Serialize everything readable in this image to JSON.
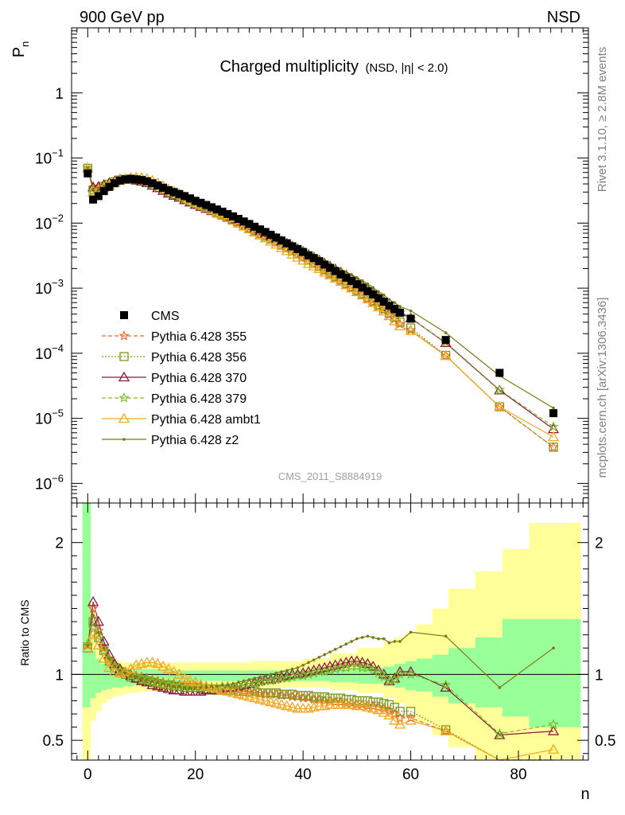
{
  "header": {
    "left": "900 GeV pp",
    "right": "NSD",
    "title_main": "Charged multiplicity",
    "title_sub": "(NSD, |η| < 2.0)",
    "side_top": "Rivet 3.1.10, ≥ 2.8M events",
    "side_bottom": "mcplots.cern.ch [arXiv:1306.3436]",
    "analysis": "CMS_2011_S8884919"
  },
  "colors": {
    "cms": "#000000",
    "p355": "#f26522",
    "p356": "#7a9a1a",
    "p370": "#8b1a3a",
    "p379": "#7cba2a",
    "ambt1": "#f5a623",
    "z2": "#7a7a10",
    "band_inner": "#99ff99",
    "band_outer": "#ffff99"
  },
  "chart_data": [
    {
      "type": "scatter",
      "panel": "main",
      "ylabel": "P",
      "ylabel_sub": "n",
      "yscale": "log",
      "ylim": [
        5e-07,
        10
      ],
      "xlim": [
        -3,
        93
      ],
      "yticks": [
        {
          "v": 1,
          "label": "1"
        },
        {
          "v": 0.1,
          "label": "10",
          "exp": "−1"
        },
        {
          "v": 0.01,
          "label": "10",
          "exp": "−2"
        },
        {
          "v": 0.001,
          "label": "10",
          "exp": "−3"
        },
        {
          "v": 0.0001,
          "label": "10",
          "exp": "−4"
        },
        {
          "v": 1e-05,
          "label": "10",
          "exp": "−5"
        },
        {
          "v": 1e-06,
          "label": "10",
          "exp": "−6"
        }
      ],
      "legend": [
        "CMS",
        "Pythia 6.428 355",
        "Pythia 6.428 356",
        "Pythia 6.428 370",
        "Pythia 6.428 379",
        "Pythia 6.428 ambt1",
        "Pythia 6.428 z2"
      ],
      "cms_x": [
        0,
        1,
        2,
        3,
        4,
        5,
        6,
        7,
        8,
        9,
        10,
        11,
        12,
        13,
        14,
        15,
        16,
        17,
        18,
        19,
        20,
        21,
        22,
        23,
        24,
        25,
        26,
        27,
        28,
        29,
        30,
        31,
        32,
        33,
        34,
        35,
        36,
        37,
        38,
        39,
        40,
        41,
        42,
        43,
        44,
        45,
        46,
        47,
        48,
        49,
        50,
        51,
        52,
        53,
        54,
        55,
        56,
        57,
        58,
        60,
        66.5,
        76.5,
        86.5
      ],
      "cms_y": [
        0.058,
        0.023,
        0.026,
        0.031,
        0.036,
        0.041,
        0.045,
        0.047,
        0.048,
        0.047,
        0.046,
        0.044,
        0.041,
        0.038,
        0.035,
        0.032,
        0.03,
        0.028,
        0.026,
        0.024,
        0.022,
        0.0205,
        0.019,
        0.0175,
        0.0162,
        0.015,
        0.0138,
        0.0127,
        0.0116,
        0.0106,
        0.0097,
        0.0088,
        0.008,
        0.0073,
        0.0066,
        0.006,
        0.0054,
        0.0049,
        0.0044,
        0.004,
        0.0036,
        0.0032,
        0.0029,
        0.0026,
        0.0023,
        0.00205,
        0.00183,
        0.00163,
        0.00145,
        0.00129,
        0.00115,
        0.00102,
        0.0009,
        0.0008,
        0.0007,
        0.00062,
        0.00054,
        0.00048,
        0.00042,
        0.00034,
        0.00016,
        5e-05,
        1.2e-05
      ]
    },
    {
      "type": "line",
      "panel": "ratio",
      "ylabel": "Ratio to CMS",
      "xlabel": "n",
      "ylim": [
        0.35,
        2.3
      ],
      "xlim": [
        -3,
        93
      ],
      "xticks": [
        0,
        20,
        40,
        60,
        80
      ],
      "yticks": [
        {
          "v": 0.5,
          "label": "0.5"
        },
        {
          "v": 1,
          "label": "1"
        },
        {
          "v": 2,
          "label": "2"
        }
      ],
      "x": [
        0,
        1,
        2,
        3,
        4,
        5,
        6,
        7,
        8,
        9,
        10,
        11,
        12,
        13,
        14,
        15,
        16,
        17,
        18,
        19,
        20,
        21,
        22,
        23,
        24,
        25,
        26,
        27,
        28,
        29,
        30,
        31,
        32,
        33,
        34,
        35,
        36,
        37,
        38,
        39,
        40,
        41,
        42,
        43,
        44,
        45,
        46,
        47,
        48,
        49,
        50,
        51,
        52,
        53,
        54,
        55,
        56,
        57,
        58,
        60,
        66.5,
        76.5,
        86.5
      ],
      "series": [
        {
          "name": "Pythia 6.428 355",
          "key": "p355",
          "marker": "star",
          "dash": "5,3",
          "values": [
            1.22,
            1.5,
            1.33,
            1.2,
            1.12,
            1.07,
            1.04,
            1.02,
            1.0,
            0.99,
            0.98,
            0.97,
            0.96,
            0.95,
            0.94,
            0.93,
            0.93,
            0.92,
            0.92,
            0.91,
            0.91,
            0.91,
            0.9,
            0.9,
            0.9,
            0.89,
            0.89,
            0.88,
            0.88,
            0.87,
            0.87,
            0.86,
            0.86,
            0.85,
            0.85,
            0.85,
            0.84,
            0.84,
            0.83,
            0.83,
            0.82,
            0.82,
            0.81,
            0.81,
            0.8,
            0.8,
            0.79,
            0.79,
            0.78,
            0.78,
            0.77,
            0.77,
            0.76,
            0.76,
            0.75,
            0.74,
            0.72,
            0.7,
            0.67,
            0.67,
            0.57,
            0.3,
            0.3
          ]
        },
        {
          "name": "Pythia 6.428 356",
          "key": "p356",
          "marker": "square",
          "dash": "2,2",
          "values": [
            1.2,
            1.4,
            1.28,
            1.18,
            1.1,
            1.05,
            1.02,
            1.0,
            0.98,
            0.97,
            0.96,
            0.95,
            0.94,
            0.93,
            0.92,
            0.92,
            0.91,
            0.91,
            0.9,
            0.9,
            0.9,
            0.89,
            0.89,
            0.89,
            0.88,
            0.88,
            0.88,
            0.88,
            0.87,
            0.87,
            0.87,
            0.87,
            0.86,
            0.86,
            0.86,
            0.86,
            0.85,
            0.85,
            0.85,
            0.84,
            0.84,
            0.84,
            0.83,
            0.83,
            0.83,
            0.82,
            0.82,
            0.82,
            0.81,
            0.81,
            0.8,
            0.8,
            0.8,
            0.79,
            0.79,
            0.78,
            0.77,
            0.75,
            0.72,
            0.72,
            0.58,
            0.3,
            0.3
          ]
        },
        {
          "name": "Pythia 6.428 370",
          "key": "p370",
          "marker": "triangle",
          "dash": "",
          "values": [
            1.2,
            1.55,
            1.4,
            1.25,
            1.15,
            1.08,
            1.04,
            1.01,
            0.99,
            0.97,
            0.95,
            0.94,
            0.92,
            0.91,
            0.9,
            0.89,
            0.88,
            0.88,
            0.87,
            0.87,
            0.87,
            0.87,
            0.88,
            0.88,
            0.89,
            0.89,
            0.9,
            0.9,
            0.91,
            0.92,
            0.93,
            0.94,
            0.95,
            0.96,
            0.96,
            0.97,
            0.98,
            0.99,
            1.0,
            1.0,
            1.01,
            1.02,
            1.03,
            1.04,
            1.05,
            1.06,
            1.07,
            1.08,
            1.09,
            1.1,
            1.1,
            1.09,
            1.08,
            1.06,
            1.03,
            1.0,
            0.95,
            0.97,
            1.02,
            1.02,
            0.9,
            0.54,
            0.57
          ]
        },
        {
          "name": "Pythia 6.428 379",
          "key": "p379",
          "marker": "star",
          "dash": "5,3",
          "values": [
            1.23,
            1.35,
            1.27,
            1.18,
            1.11,
            1.06,
            1.03,
            1.01,
            0.99,
            0.98,
            0.96,
            0.95,
            0.94,
            0.93,
            0.92,
            0.92,
            0.91,
            0.91,
            0.9,
            0.9,
            0.9,
            0.9,
            0.9,
            0.9,
            0.9,
            0.91,
            0.91,
            0.91,
            0.92,
            0.92,
            0.93,
            0.93,
            0.94,
            0.95,
            0.95,
            0.96,
            0.97,
            0.97,
            0.98,
            0.99,
            0.99,
            1.0,
            1.01,
            1.02,
            1.02,
            1.03,
            1.04,
            1.05,
            1.05,
            1.06,
            1.06,
            1.05,
            1.05,
            1.03,
            1.01,
            0.98,
            0.95,
            0.96,
            1.0,
            1.0,
            0.92,
            0.55,
            0.62
          ]
        },
        {
          "name": "Pythia 6.428 ambt1",
          "key": "ambt1",
          "marker": "triangle",
          "dash": "",
          "values": [
            1.2,
            1.3,
            1.22,
            1.12,
            1.05,
            1.02,
            1.01,
            1.02,
            1.04,
            1.07,
            1.08,
            1.09,
            1.09,
            1.08,
            1.06,
            1.04,
            1.02,
            1.0,
            0.97,
            0.95,
            0.94,
            0.92,
            0.91,
            0.9,
            0.89,
            0.88,
            0.87,
            0.86,
            0.85,
            0.84,
            0.83,
            0.82,
            0.81,
            0.8,
            0.79,
            0.78,
            0.77,
            0.76,
            0.75,
            0.74,
            0.74,
            0.74,
            0.75,
            0.76,
            0.76,
            0.77,
            0.77,
            0.77,
            0.77,
            0.77,
            0.76,
            0.76,
            0.75,
            0.74,
            0.73,
            0.71,
            0.69,
            0.65,
            0.62,
            0.65,
            0.57,
            0.3,
            0.43
          ]
        },
        {
          "name": "Pythia 6.428 z2",
          "key": "z2",
          "marker": "dot",
          "dash": "",
          "values": [
            1.22,
            1.45,
            1.32,
            1.2,
            1.12,
            1.06,
            1.03,
            1.01,
            0.99,
            0.98,
            0.97,
            0.96,
            0.95,
            0.94,
            0.93,
            0.92,
            0.91,
            0.91,
            0.9,
            0.9,
            0.9,
            0.9,
            0.9,
            0.91,
            0.91,
            0.92,
            0.92,
            0.93,
            0.94,
            0.95,
            0.96,
            0.97,
            0.98,
            0.99,
            1.0,
            1.01,
            1.02,
            1.03,
            1.04,
            1.05,
            1.07,
            1.09,
            1.11,
            1.13,
            1.15,
            1.17,
            1.19,
            1.21,
            1.23,
            1.25,
            1.27,
            1.28,
            1.29,
            1.28,
            1.27,
            1.27,
            1.24,
            1.25,
            1.25,
            1.32,
            1.29,
            0.9,
            1.2
          ]
        }
      ],
      "band_edges": [
        -1,
        -0.5,
        0.5,
        1.5,
        2.5,
        3.5,
        4.5,
        5.5,
        6.5,
        7.5,
        8.5,
        9.5,
        10.5,
        11.5,
        12.5,
        13.5,
        14.5,
        15.5,
        16.5,
        17.5,
        18.5,
        19.5,
        20.5,
        25,
        30,
        35,
        40,
        45,
        50,
        55,
        57,
        59,
        61,
        64,
        67,
        72,
        77,
        82,
        87,
        91.5
      ],
      "band_inner_lo": [
        0.75,
        0.75,
        0.82,
        0.86,
        0.88,
        0.89,
        0.9,
        0.9,
        0.91,
        0.91,
        0.92,
        0.92,
        0.92,
        0.93,
        0.93,
        0.93,
        0.93,
        0.94,
        0.94,
        0.94,
        0.94,
        0.94,
        0.95,
        0.95,
        0.95,
        0.95,
        0.95,
        0.94,
        0.93,
        0.91,
        0.9,
        0.88,
        0.87,
        0.83,
        0.78,
        0.75,
        0.68,
        0.6,
        0.6
      ],
      "band_inner_hi": [
        2.3,
        2.3,
        1.18,
        1.12,
        1.08,
        1.06,
        1.05,
        1.05,
        1.04,
        1.04,
        1.04,
        1.04,
        1.04,
        1.04,
        1.04,
        1.03,
        1.03,
        1.03,
        1.03,
        1.03,
        1.03,
        1.03,
        1.03,
        1.03,
        1.03,
        1.03,
        1.03,
        1.04,
        1.05,
        1.06,
        1.08,
        1.1,
        1.12,
        1.15,
        1.2,
        1.28,
        1.42,
        1.42,
        1.42
      ],
      "band_outer_lo": [
        0.35,
        0.35,
        0.65,
        0.72,
        0.78,
        0.81,
        0.83,
        0.84,
        0.85,
        0.86,
        0.86,
        0.87,
        0.87,
        0.87,
        0.87,
        0.87,
        0.88,
        0.88,
        0.88,
        0.88,
        0.88,
        0.89,
        0.89,
        0.9,
        0.9,
        0.9,
        0.9,
        0.88,
        0.86,
        0.82,
        0.78,
        0.74,
        0.63,
        0.54,
        0.45,
        0.35,
        0.35,
        0.35,
        0.35
      ],
      "band_outer_hi": [
        2.3,
        2.3,
        1.3,
        1.22,
        1.16,
        1.13,
        1.11,
        1.1,
        1.09,
        1.09,
        1.09,
        1.09,
        1.09,
        1.09,
        1.09,
        1.09,
        1.09,
        1.09,
        1.09,
        1.09,
        1.09,
        1.09,
        1.09,
        1.09,
        1.1,
        1.1,
        1.12,
        1.16,
        1.2,
        1.25,
        1.28,
        1.32,
        1.38,
        1.5,
        1.65,
        1.78,
        1.95,
        2.15,
        2.15
      ]
    }
  ]
}
